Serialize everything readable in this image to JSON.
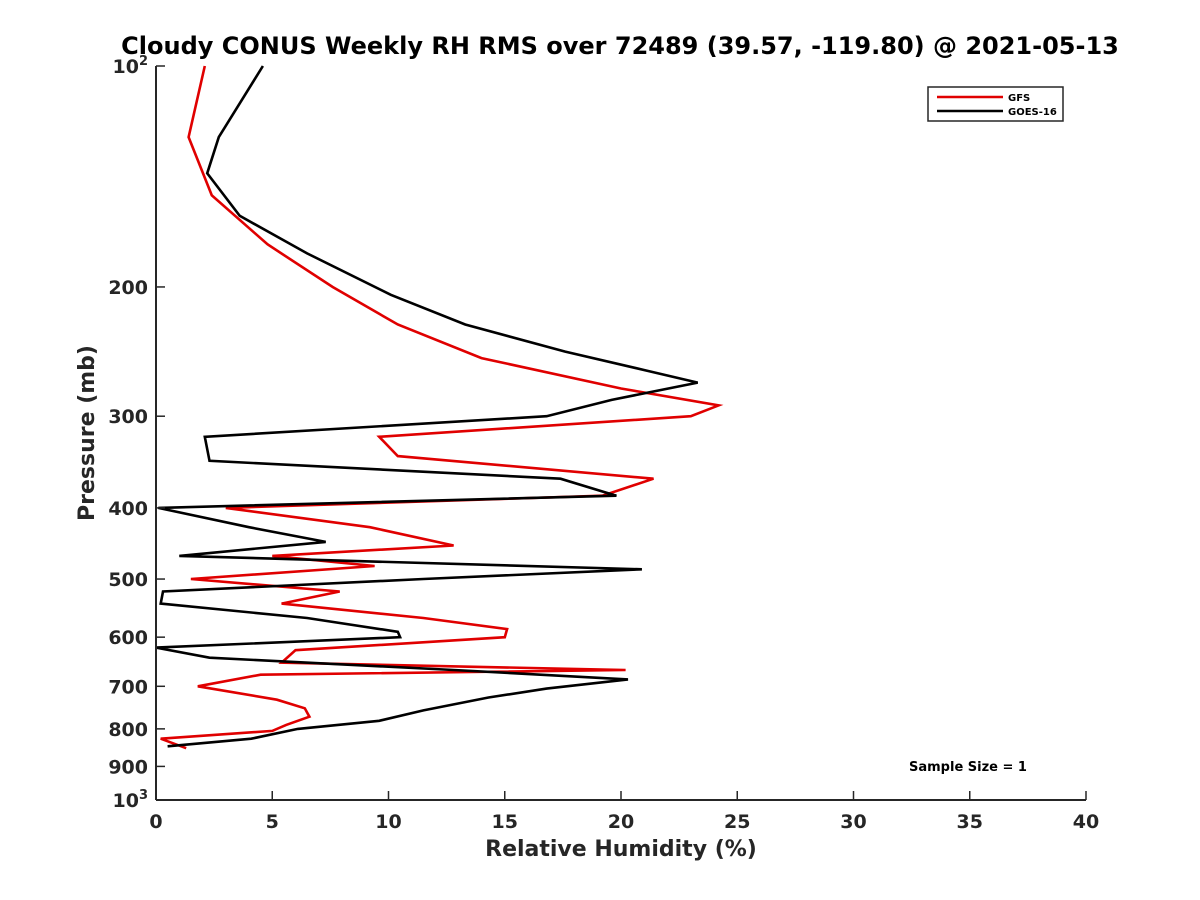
{
  "chart_data": {
    "type": "line",
    "title": "Cloudy CONUS Weekly RH RMS over 72489 (39.57, -119.80) @ 2021-05-13",
    "xlabel": "Relative Humidity (%)",
    "ylabel": "Pressure (mb)",
    "xlim": [
      0,
      40
    ],
    "ylim": [
      100,
      1000
    ],
    "y_scale": "log",
    "y_reversed": true,
    "x_ticks": [
      0,
      5,
      10,
      15,
      20,
      25,
      30,
      35,
      40
    ],
    "x_tick_labels": [
      "0",
      "5",
      "10",
      "15",
      "20",
      "25",
      "30",
      "35",
      "40"
    ],
    "y_ticks": [
      100,
      200,
      300,
      400,
      500,
      600,
      700,
      800,
      900,
      1000
    ],
    "y_tick_labels": [
      {
        "base": "10",
        "exp": "2"
      },
      {
        "base": "200",
        "exp": ""
      },
      {
        "base": "300",
        "exp": ""
      },
      {
        "base": "400",
        "exp": ""
      },
      {
        "base": "500",
        "exp": ""
      },
      {
        "base": "600",
        "exp": ""
      },
      {
        "base": "700",
        "exp": ""
      },
      {
        "base": "800",
        "exp": ""
      },
      {
        "base": "900",
        "exp": ""
      },
      {
        "base": "10",
        "exp": "3"
      }
    ],
    "grid": false,
    "legend_position": "top-right",
    "annotation": "Sample Size = 1",
    "series": [
      {
        "name": "GFS",
        "color": "#e00000",
        "points": [
          [
            2.1,
            100
          ],
          [
            1.4,
            125
          ],
          [
            2.4,
            150
          ],
          [
            4.8,
            175
          ],
          [
            7.6,
            200
          ],
          [
            10.4,
            225
          ],
          [
            14.0,
            250
          ],
          [
            20.0,
            275
          ],
          [
            24.2,
            290
          ],
          [
            23.0,
            300
          ],
          [
            9.6,
            320
          ],
          [
            10.4,
            340
          ],
          [
            21.4,
            365
          ],
          [
            19.2,
            385
          ],
          [
            3.0,
            400
          ],
          [
            9.2,
            425
          ],
          [
            12.8,
            450
          ],
          [
            5.0,
            465
          ],
          [
            9.4,
            480
          ],
          [
            1.5,
            500
          ],
          [
            7.9,
            520
          ],
          [
            5.4,
            540
          ],
          [
            11.5,
            565
          ],
          [
            15.1,
            585
          ],
          [
            15.0,
            600
          ],
          [
            6.0,
            625
          ],
          [
            5.4,
            650
          ],
          [
            20.2,
            665
          ],
          [
            4.5,
            675
          ],
          [
            1.8,
            700
          ],
          [
            5.2,
            730
          ],
          [
            6.4,
            750
          ],
          [
            6.6,
            770
          ],
          [
            5.6,
            790
          ],
          [
            5.0,
            805
          ],
          [
            0.2,
            825
          ],
          [
            1.3,
            850
          ]
        ]
      },
      {
        "name": "GOES-16",
        "color": "#000000",
        "points": [
          [
            4.6,
            100
          ],
          [
            2.7,
            125
          ],
          [
            2.2,
            140
          ],
          [
            3.6,
            160
          ],
          [
            6.5,
            180
          ],
          [
            10.1,
            205
          ],
          [
            13.3,
            225
          ],
          [
            17.6,
            245
          ],
          [
            21.1,
            260
          ],
          [
            23.3,
            270
          ],
          [
            19.6,
            285
          ],
          [
            16.8,
            300
          ],
          [
            2.1,
            320
          ],
          [
            2.3,
            345
          ],
          [
            17.4,
            365
          ],
          [
            19.8,
            385
          ],
          [
            0.1,
            400
          ],
          [
            4.0,
            425
          ],
          [
            7.3,
            445
          ],
          [
            1.0,
            465
          ],
          [
            20.9,
            485
          ],
          [
            11.5,
            500
          ],
          [
            0.3,
            520
          ],
          [
            0.2,
            540
          ],
          [
            6.5,
            565
          ],
          [
            10.4,
            590
          ],
          [
            10.5,
            600
          ],
          [
            0.0,
            620
          ],
          [
            2.3,
            640
          ],
          [
            12.8,
            665
          ],
          [
            20.3,
            685
          ],
          [
            16.8,
            705
          ],
          [
            14.3,
            725
          ],
          [
            11.5,
            755
          ],
          [
            9.6,
            780
          ],
          [
            6.1,
            800
          ],
          [
            4.1,
            825
          ],
          [
            0.5,
            845
          ]
        ]
      }
    ]
  }
}
